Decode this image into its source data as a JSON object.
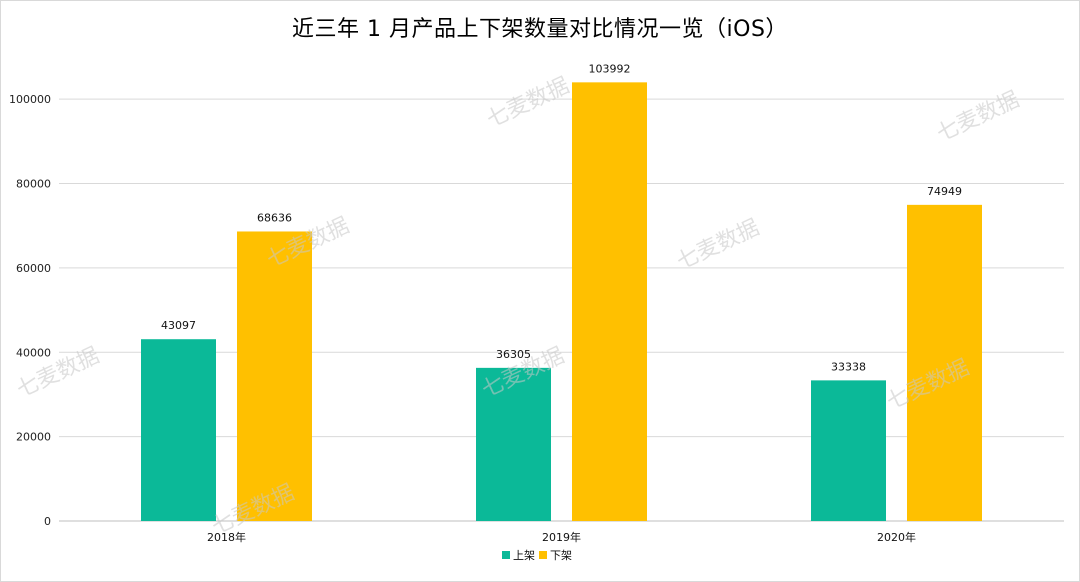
{
  "chart_data": {
    "type": "bar",
    "title": "近三年 1 月产品上下架数量对比情况一览（iOS）",
    "categories": [
      "2018年",
      "2019年",
      "2020年"
    ],
    "series": [
      {
        "name": "上架",
        "color": "#0bb998",
        "values": [
          43097,
          36305,
          33338
        ]
      },
      {
        "name": "下架",
        "color": "#ffc000",
        "values": [
          68636,
          103992,
          74949
        ]
      }
    ],
    "yticks": [
      0,
      20000,
      40000,
      60000,
      80000,
      100000
    ],
    "ylim": [
      0,
      110000
    ],
    "grid": true,
    "legend_position": "bottom",
    "watermark": "七麦数据"
  }
}
